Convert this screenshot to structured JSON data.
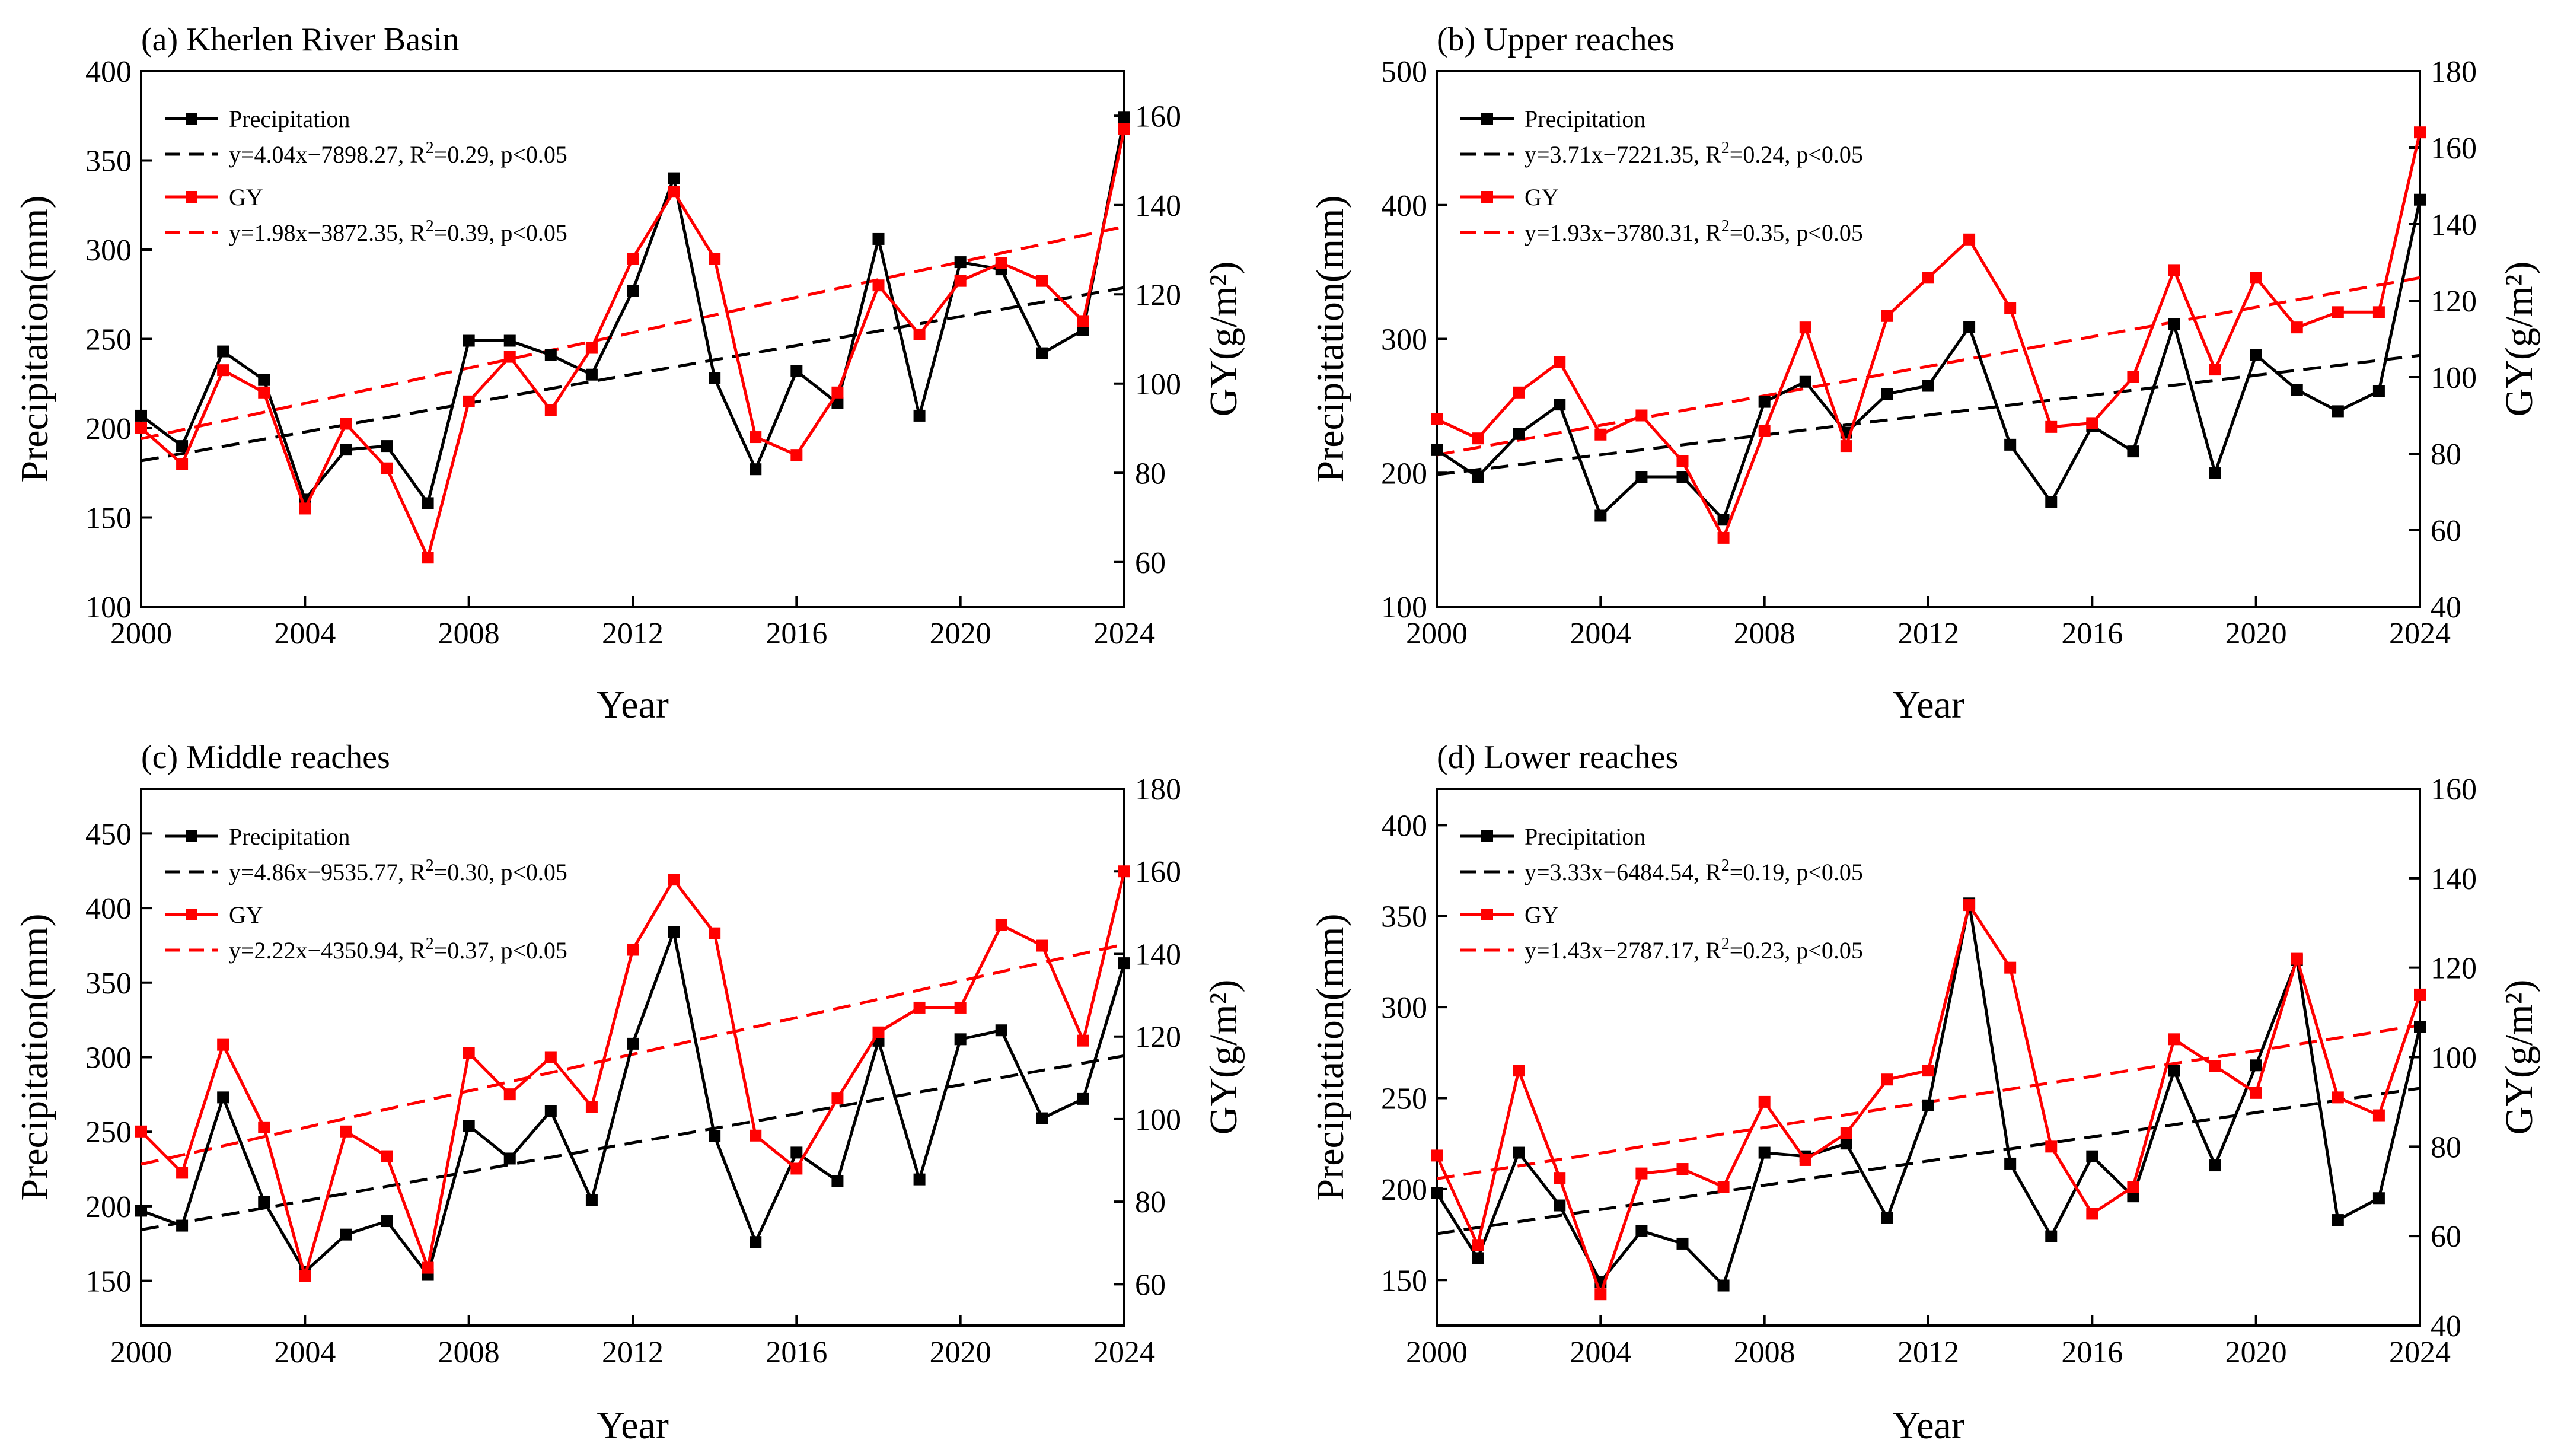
{
  "chart_data": [
    {
      "type": "line",
      "title": "(a) Kherlen River Basin",
      "xlabel": "Year",
      "ylabel": "Precipitation(mm)",
      "y2label": "GY(g/m²)",
      "xlim": [
        2000,
        2024
      ],
      "ylim": [
        100,
        400
      ],
      "y2lim": [
        50,
        170
      ],
      "xticks": [
        2000,
        2004,
        2008,
        2012,
        2016,
        2020,
        2024
      ],
      "yticks": [
        100,
        150,
        200,
        250,
        300,
        350,
        400
      ],
      "y2ticks": [
        60,
        80,
        100,
        120,
        140,
        160
      ],
      "x": [
        2000,
        2001,
        2002,
        2003,
        2004,
        2005,
        2006,
        2007,
        2008,
        2009,
        2010,
        2011,
        2012,
        2013,
        2014,
        2015,
        2016,
        2017,
        2018,
        2019,
        2020,
        2021,
        2022,
        2023,
        2024
      ],
      "series": [
        {
          "name": "Precipitation",
          "axis": "left",
          "color": "#000000",
          "values": [
            207,
            190,
            243,
            227,
            160,
            188,
            190,
            158,
            249,
            249,
            241,
            230,
            277,
            340,
            228,
            177,
            232,
            214,
            306,
            207,
            293,
            289,
            242,
            255,
            374
          ]
        },
        {
          "name": "GY",
          "axis": "right",
          "color": "#ff0000",
          "values": [
            90,
            82,
            103,
            98,
            72,
            91,
            81,
            61,
            96,
            106,
            94,
            108,
            128,
            143,
            128,
            88,
            84,
            98,
            122,
            111,
            123,
            127,
            123,
            114,
            157
          ]
        }
      ],
      "trendlines": [
        {
          "label": "y=4.04x−7898.27, R",
          "sup": "2",
          "tail": "=0.29, p<0.05",
          "axis": "left",
          "color": "#000000",
          "slope": 4.04,
          "intercept": -7898.27
        },
        {
          "label": "y=1.98x−3872.35, R",
          "sup": "2",
          "tail": "=0.39, p<0.05",
          "axis": "right",
          "color": "#ff0000",
          "slope": 1.98,
          "intercept": -3872.35
        }
      ],
      "legend": [
        "Precipitation",
        "GY"
      ]
    },
    {
      "type": "line",
      "title": "(b) Upper reaches",
      "xlabel": "Year",
      "ylabel": "Precipitation(mm)",
      "y2label": "GY(g/m²)",
      "xlim": [
        2000,
        2024
      ],
      "ylim": [
        100,
        500
      ],
      "y2lim": [
        40,
        180
      ],
      "xticks": [
        2000,
        2004,
        2008,
        2012,
        2016,
        2020,
        2024
      ],
      "yticks": [
        100,
        200,
        300,
        400,
        500
      ],
      "y2ticks": [
        40,
        60,
        80,
        100,
        120,
        140,
        160,
        180
      ],
      "x": [
        2000,
        2001,
        2002,
        2003,
        2004,
        2005,
        2006,
        2007,
        2008,
        2009,
        2010,
        2011,
        2012,
        2013,
        2014,
        2015,
        2016,
        2017,
        2018,
        2019,
        2020,
        2021,
        2022,
        2023,
        2024
      ],
      "series": [
        {
          "name": "Precipitation",
          "axis": "left",
          "color": "#000000",
          "values": [
            217,
            197,
            229,
            251,
            168,
            197,
            197,
            165,
            253,
            268,
            230,
            259,
            265,
            309,
            221,
            178,
            235,
            216,
            311,
            200,
            288,
            262,
            246,
            261,
            404
          ]
        },
        {
          "name": "GY",
          "axis": "right",
          "color": "#ff0000",
          "values": [
            89,
            84,
            96,
            104,
            85,
            90,
            78,
            58,
            86,
            113,
            82,
            116,
            126,
            136,
            118,
            87,
            88,
            100,
            128,
            102,
            126,
            113,
            117,
            117,
            164
          ]
        }
      ],
      "trendlines": [
        {
          "label": "y=3.71x−7221.35, R",
          "sup": "2",
          "tail": "=0.24, p<0.05",
          "axis": "left",
          "color": "#000000",
          "slope": 3.71,
          "intercept": -7221.35
        },
        {
          "label": "y=1.93x−3780.31, R",
          "sup": "2",
          "tail": "=0.35, p<0.05",
          "axis": "right",
          "color": "#ff0000",
          "slope": 1.93,
          "intercept": -3780.31
        }
      ],
      "legend": [
        "Precipitation",
        "GY"
      ]
    },
    {
      "type": "line",
      "title": "(c) Middle reaches",
      "xlabel": "Year",
      "ylabel": "Precipitation(mm)",
      "y2label": "GY(g/m²)",
      "xlim": [
        2000,
        2024
      ],
      "ylim": [
        120,
        480
      ],
      "y2lim": [
        50,
        180
      ],
      "xticks": [
        2000,
        2004,
        2008,
        2012,
        2016,
        2020,
        2024
      ],
      "yticks": [
        150,
        200,
        250,
        300,
        350,
        400,
        450
      ],
      "y2ticks": [
        60,
        80,
        100,
        120,
        140,
        160,
        180
      ],
      "x": [
        2000,
        2001,
        2002,
        2003,
        2004,
        2005,
        2006,
        2007,
        2008,
        2009,
        2010,
        2011,
        2012,
        2013,
        2014,
        2015,
        2016,
        2017,
        2018,
        2019,
        2020,
        2021,
        2022,
        2023,
        2024
      ],
      "series": [
        {
          "name": "Precipitation",
          "axis": "left",
          "color": "#000000",
          "values": [
            197,
            187,
            273,
            203,
            156,
            181,
            190,
            154,
            254,
            232,
            264,
            204,
            309,
            384,
            247,
            176,
            236,
            217,
            311,
            218,
            312,
            318,
            259,
            272,
            363
          ]
        },
        {
          "name": "GY",
          "axis": "right",
          "color": "#ff0000",
          "values": [
            97,
            87,
            118,
            98,
            62,
            97,
            91,
            64,
            116,
            106,
            115,
            103,
            141,
            158,
            145,
            96,
            88,
            105,
            121,
            127,
            127,
            147,
            142,
            119,
            160
          ]
        }
      ],
      "trendlines": [
        {
          "label": "y=4.86x−9535.77, R",
          "sup": "2",
          "tail": "=0.30, p<0.05",
          "axis": "left",
          "color": "#000000",
          "slope": 4.86,
          "intercept": -9535.77
        },
        {
          "label": "y=2.22x−4350.94, R",
          "sup": "2",
          "tail": "=0.37, p<0.05",
          "axis": "right",
          "color": "#ff0000",
          "slope": 2.22,
          "intercept": -4350.94
        }
      ],
      "legend": [
        "Precipitation",
        "GY"
      ]
    },
    {
      "type": "line",
      "title": "(d) Lower reaches",
      "xlabel": "Year",
      "ylabel": "Precipitation(mm)",
      "y2label": "GY(g/m²)",
      "xlim": [
        2000,
        2024
      ],
      "ylim": [
        125,
        420
      ],
      "y2lim": [
        40,
        160
      ],
      "xticks": [
        2000,
        2004,
        2008,
        2012,
        2016,
        2020,
        2024
      ],
      "yticks": [
        150,
        200,
        250,
        300,
        350,
        400
      ],
      "y2ticks": [
        40,
        60,
        80,
        100,
        120,
        140,
        160
      ],
      "x": [
        2000,
        2001,
        2002,
        2003,
        2004,
        2005,
        2006,
        2007,
        2008,
        2009,
        2010,
        2011,
        2012,
        2013,
        2014,
        2015,
        2016,
        2017,
        2018,
        2019,
        2020,
        2021,
        2022,
        2023,
        2024
      ],
      "series": [
        {
          "name": "Precipitation",
          "axis": "left",
          "color": "#000000",
          "values": [
            198,
            162,
            220,
            191,
            149,
            177,
            170,
            147,
            220,
            218,
            225,
            184,
            246,
            357,
            214,
            174,
            218,
            196,
            265,
            213,
            268,
            326,
            183,
            195,
            289
          ]
        },
        {
          "name": "GY",
          "axis": "right",
          "color": "#ff0000",
          "values": [
            78,
            58,
            97,
            73,
            47,
            74,
            75,
            71,
            90,
            77,
            83,
            95,
            97,
            134,
            120,
            80,
            65,
            71,
            104,
            98,
            92,
            122,
            91,
            87,
            114
          ]
        }
      ],
      "trendlines": [
        {
          "label": "y=3.33x−6484.54, R",
          "sup": "2",
          "tail": "=0.19, p<0.05",
          "axis": "left",
          "color": "#000000",
          "slope": 3.33,
          "intercept": -6484.54
        },
        {
          "label": "y=1.43x−2787.17, R",
          "sup": "2",
          "tail": "=0.23, p<0.05",
          "axis": "right",
          "color": "#ff0000",
          "slope": 1.43,
          "intercept": -2787.17
        }
      ],
      "legend": [
        "Precipitation",
        "GY"
      ]
    }
  ]
}
